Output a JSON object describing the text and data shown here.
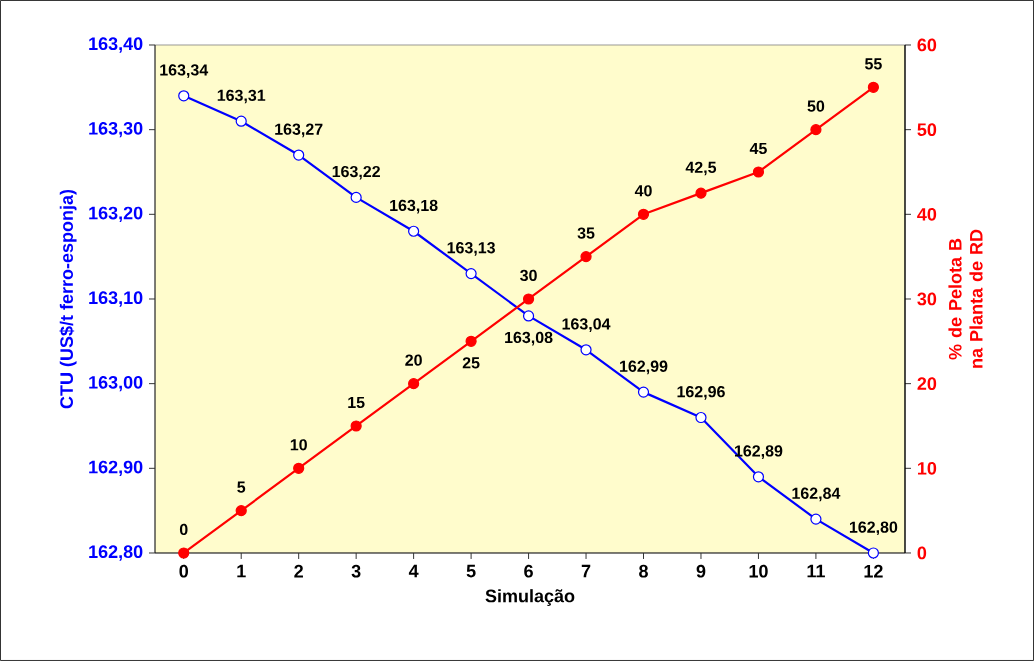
{
  "chart_data": {
    "type": "line",
    "xlabel": "Simulação",
    "ylabel": "CTU (US$/t ferro-esponja)",
    "y2label": "% de Pelota B na Planta de RD",
    "categories": [
      "0",
      "1",
      "2",
      "3",
      "4",
      "5",
      "6",
      "7",
      "8",
      "9",
      "10",
      "11",
      "12"
    ],
    "ylim": [
      162.8,
      163.4
    ],
    "yticks": [
      {
        "value": 162.8,
        "label": "162,80"
      },
      {
        "value": 162.9,
        "label": "162,90"
      },
      {
        "value": 163.0,
        "label": "163,00"
      },
      {
        "value": 163.1,
        "label": "163,10"
      },
      {
        "value": 163.2,
        "label": "163,20"
      },
      {
        "value": 163.3,
        "label": "163,30"
      },
      {
        "value": 163.4,
        "label": "163,40"
      }
    ],
    "y2lim": [
      0,
      60
    ],
    "y2ticks": [
      0,
      10,
      20,
      30,
      40,
      50,
      60
    ],
    "marker": "circle",
    "line_style": "solid",
    "series": [
      {
        "color": "#0000ff",
        "values": [
          163.34,
          163.31,
          163.27,
          163.22,
          163.18,
          163.13,
          163.08,
          163.04,
          162.99,
          162.96,
          162.89,
          162.84,
          162.8
        ],
        "value_labels": [
          "163,34",
          "163,31",
          "163,27",
          "163,22",
          "163,18",
          "163,13",
          "163,08",
          "163,04",
          "162,99",
          "162,96",
          "162,89",
          "162,84",
          "162,80"
        ]
      },
      {
        "color": "#ff0000",
        "axis": "y2",
        "values": [
          0,
          5,
          10,
          15,
          20,
          25,
          30,
          35,
          40,
          42.5,
          45,
          50,
          55
        ],
        "value_labels": [
          "0",
          "5",
          "10",
          "15",
          "20",
          "25",
          "30",
          "35",
          "40",
          "42,5",
          "45",
          "50",
          "55"
        ]
      }
    ]
  }
}
